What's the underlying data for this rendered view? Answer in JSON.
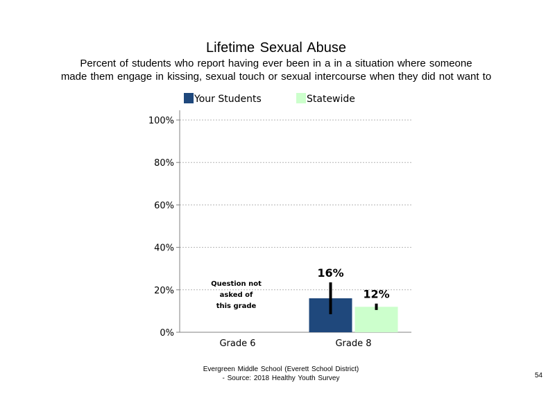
{
  "chart_data": {
    "type": "bar",
    "title": "Lifetime Sexual Abuse",
    "subtitle_lines": [
      "Percent of students who report having ever been in a in a situation where someone",
      "made them engage in kissing, sexual touch or sexual intercourse when they did not want to"
    ],
    "categories": [
      "Grade 6",
      "Grade 8"
    ],
    "series": [
      {
        "name": "Your Students",
        "color": "#1f487c",
        "values": [
          null,
          16
        ],
        "labels": [
          "",
          "16%"
        ],
        "error_low": [
          null,
          8.5
        ],
        "error_high": [
          null,
          23.5
        ]
      },
      {
        "name": "Statewide",
        "color": "#ccffcc",
        "values": [
          null,
          12
        ],
        "labels": [
          "",
          "12%"
        ],
        "error_low": [
          null,
          10.5
        ],
        "error_high": [
          null,
          13.5
        ]
      }
    ],
    "ylim": [
      0,
      100
    ],
    "yticks": [
      0,
      20,
      40,
      60,
      80,
      100
    ],
    "ytick_labels": [
      "0%",
      "20%",
      "40%",
      "60%",
      "80%",
      "100%"
    ],
    "grid": true,
    "legend_position": "top",
    "annotations": [
      {
        "category": "Grade 6",
        "lines": [
          "Question not",
          "asked of",
          "this grade"
        ]
      }
    ]
  },
  "footer": {
    "line1": "Evergreen Middle School (Everett School District)",
    "line2": "- Source: 2018 Healthy Youth Survey"
  },
  "page_number": "54"
}
